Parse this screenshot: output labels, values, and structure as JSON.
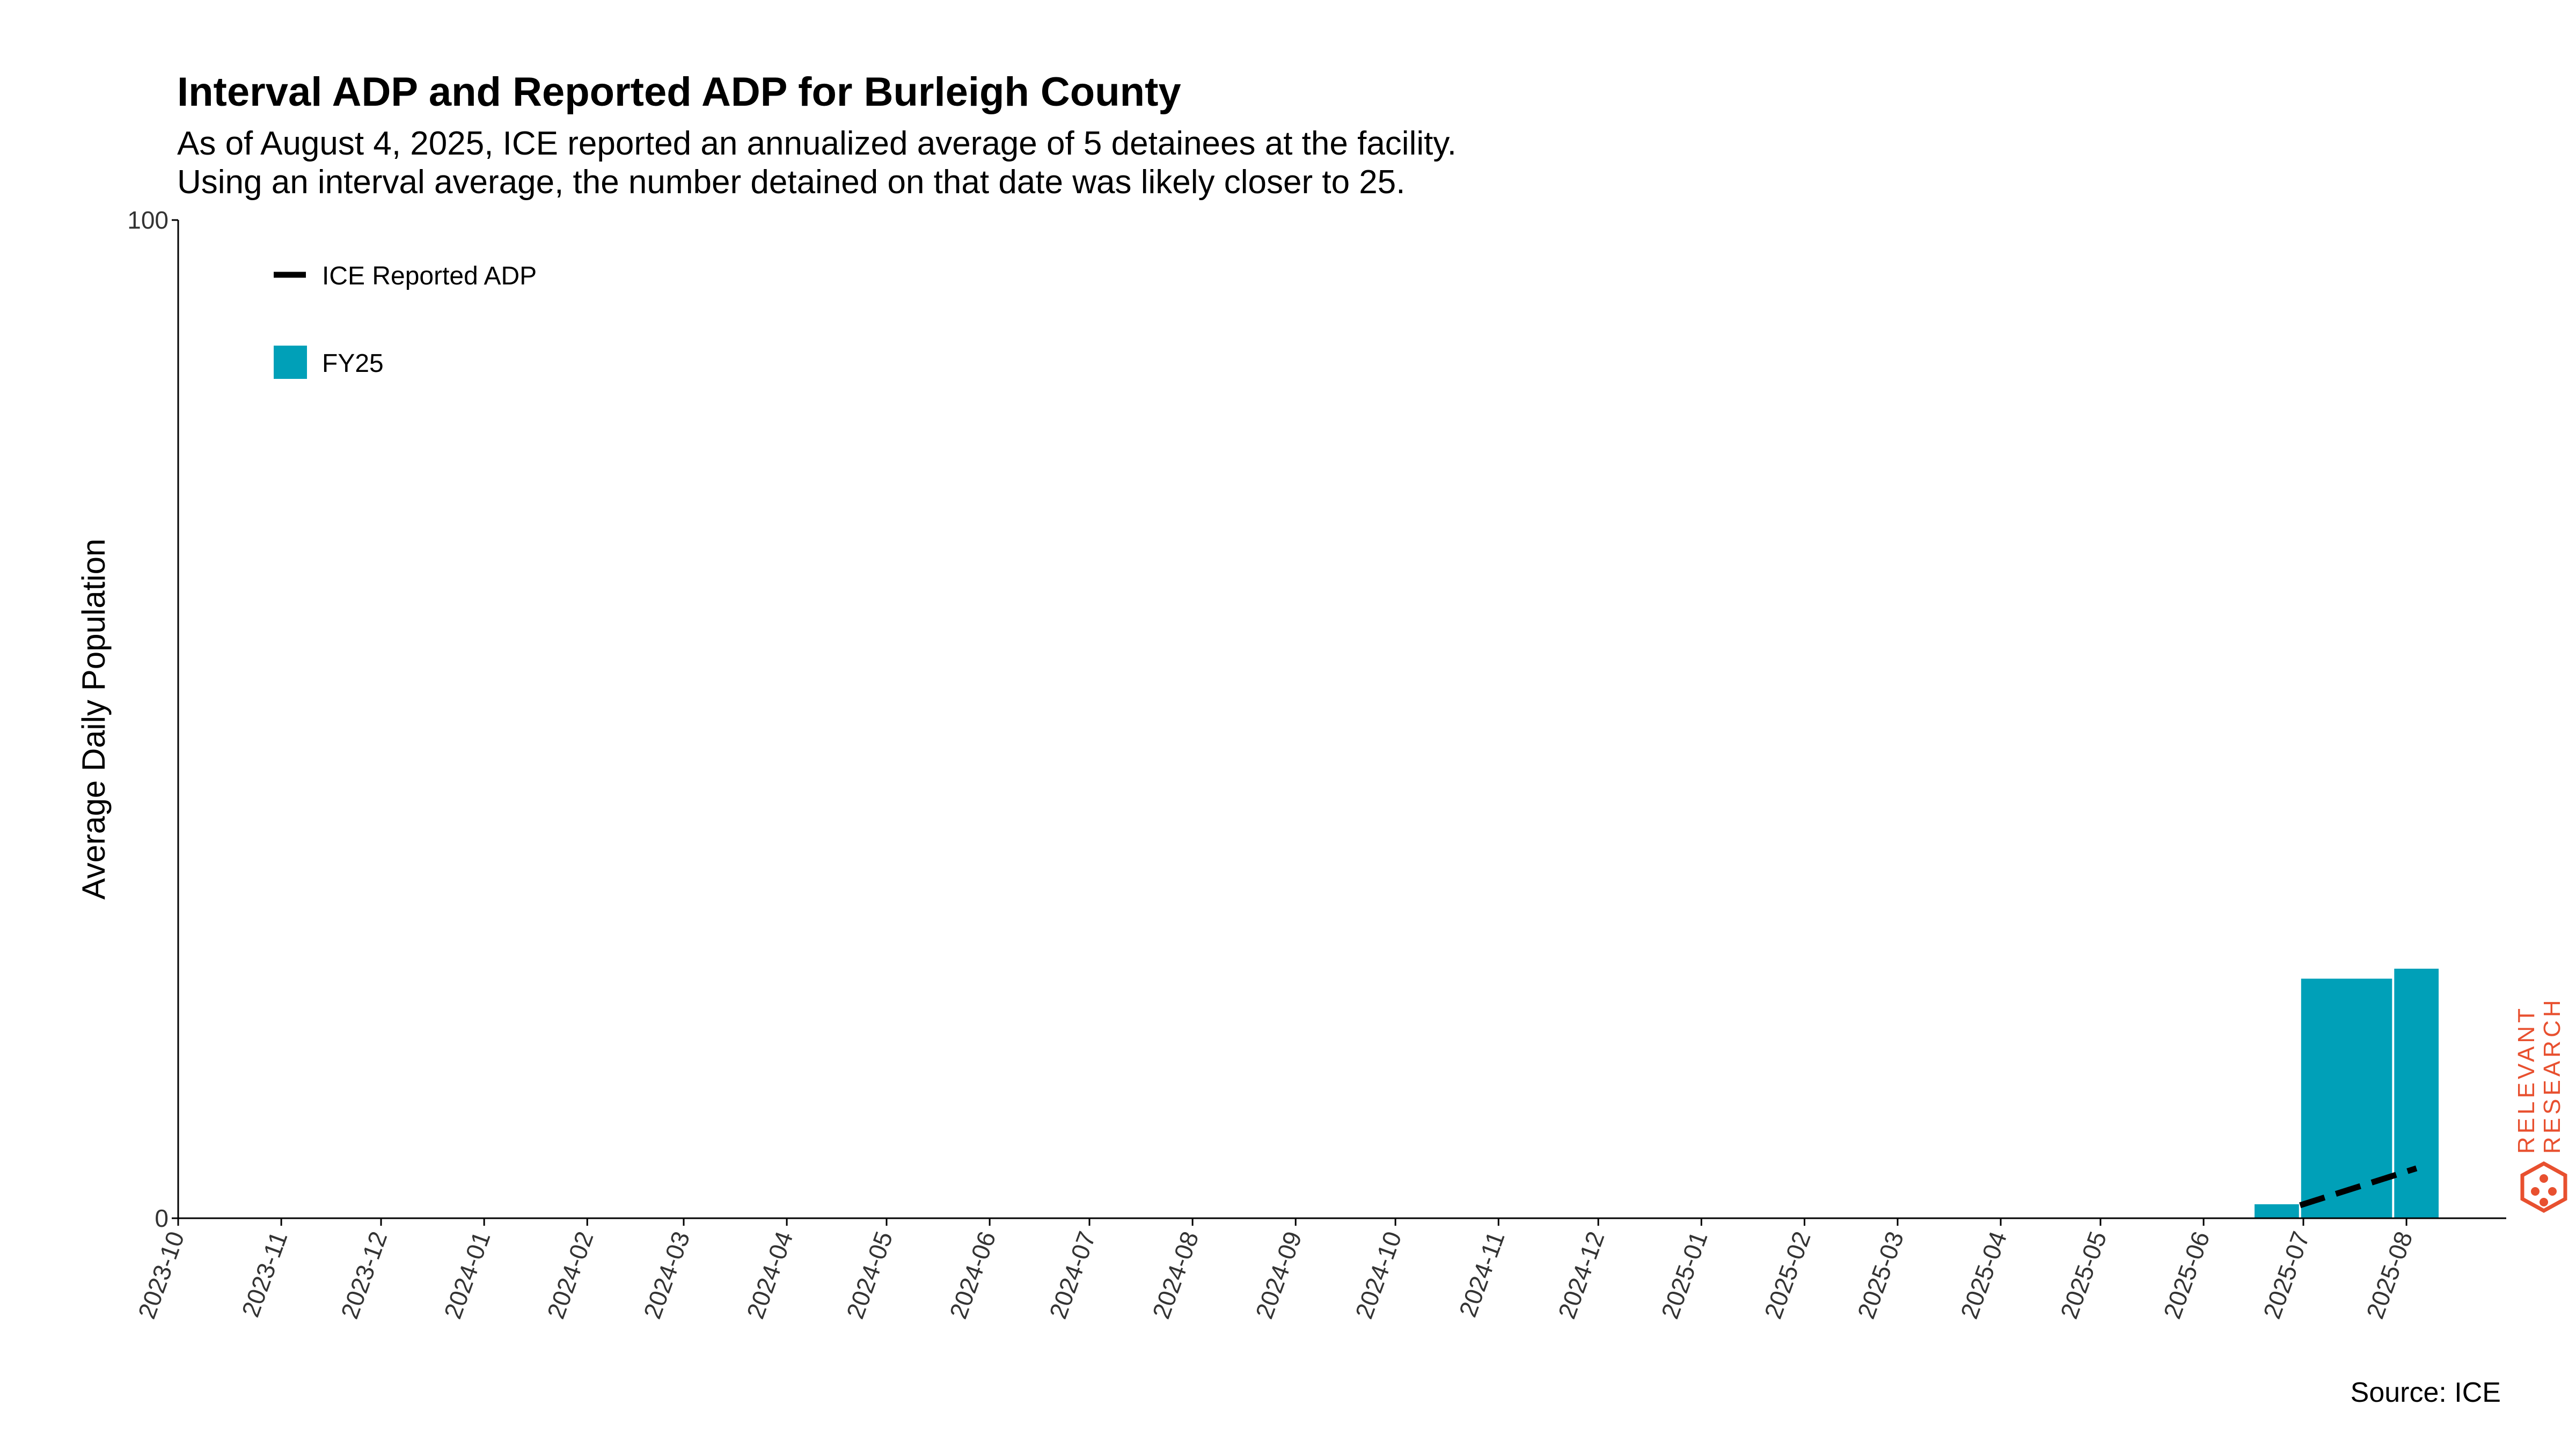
{
  "title": "Interval ADP and Reported ADP for Burleigh County",
  "subtitle_lines": [
    "As of August 4, 2025, ICE reported an annualized average of 5 detainees at the facility.",
    "Using an interval average, the number detained on that date was likely closer to 25."
  ],
  "source": "Source: ICE",
  "logo": {
    "line1": "RELEVANT",
    "line2": "RESEARCH",
    "color": "#e8502f"
  },
  "colors": {
    "bar": "#00a0b8",
    "line": "#000000"
  },
  "chart_data": {
    "type": "bar",
    "ylabel": "Average Daily Population",
    "ylim": [
      0,
      100
    ],
    "yticks": [
      0,
      100
    ],
    "xlim": [
      "2023-10-01",
      "2025-08-31"
    ],
    "xticks": [
      "2023-10",
      "2023-11",
      "2023-12",
      "2024-01",
      "2024-02",
      "2024-03",
      "2024-04",
      "2024-05",
      "2024-06",
      "2024-07",
      "2024-08",
      "2024-09",
      "2024-10",
      "2024-11",
      "2024-12",
      "2025-01",
      "2025-02",
      "2025-03",
      "2025-04",
      "2025-05",
      "2025-06",
      "2025-07",
      "2025-08"
    ],
    "legend": {
      "placement": "top-left",
      "entries": [
        "ICE Reported ADP",
        "FY25"
      ]
    },
    "bars": {
      "name": "FY25",
      "intervals": [
        {
          "start": "2025-06-16",
          "end": "2025-06-30",
          "value": 1.4
        },
        {
          "start": "2025-06-30",
          "end": "2025-07-28",
          "value": 24
        },
        {
          "start": "2025-07-28",
          "end": "2025-08-11",
          "value": 25
        }
      ]
    },
    "line": {
      "name": "ICE Reported ADP",
      "style": "dashed",
      "points": [
        {
          "x": "2025-06-30",
          "y": 1.3
        },
        {
          "x": "2025-08-04",
          "y": 5
        }
      ]
    }
  }
}
